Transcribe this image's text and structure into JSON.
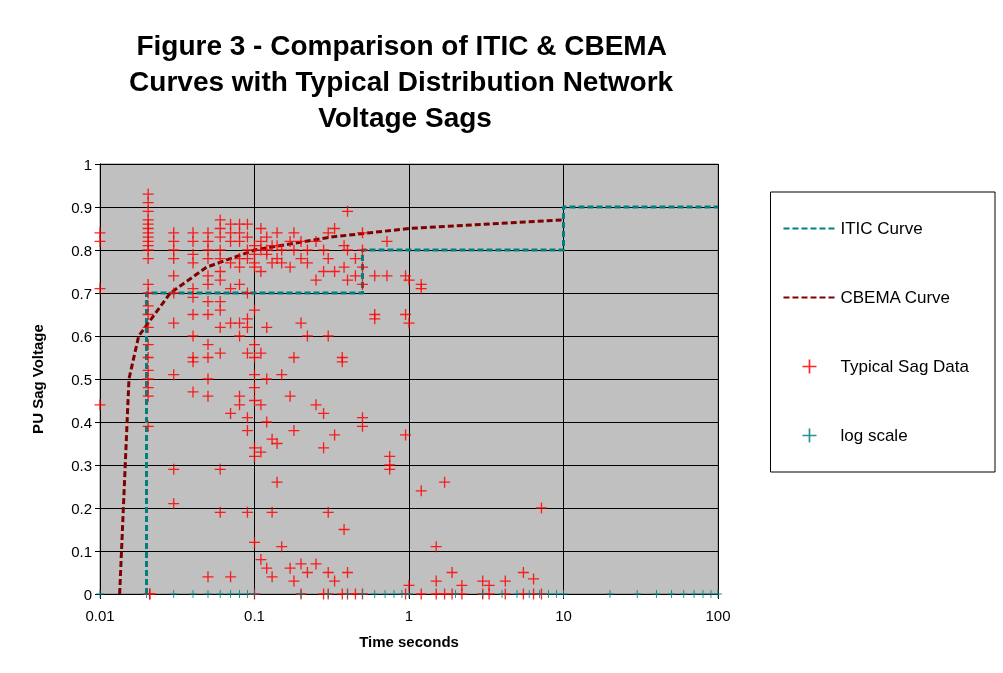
{
  "chart_data": {
    "type": "scatter",
    "title": "Figure 3 - Comparison of ITIC & CBEMA Curves with Typical Distribution Network Voltage Sags",
    "xlabel": "Time seconds",
    "ylabel": "PU Sag Voltage",
    "log": "x",
    "xlim": [
      0.01,
      100
    ],
    "xticks": [
      0.01,
      0.1,
      1,
      10,
      100
    ],
    "ylim": [
      0,
      1
    ],
    "yticks": [
      0,
      0.1,
      0.2,
      0.3,
      0.4,
      0.5,
      0.6,
      0.7,
      0.8,
      0.9,
      1
    ],
    "grid": true,
    "legend": "right",
    "series": [
      {
        "name": "ITIC Curve",
        "type": "line",
        "color": "#008080",
        "line_style": "dashed",
        "marker": "none",
        "x": [
          0.02,
          0.02,
          0.5,
          0.5,
          10,
          10,
          100
        ],
        "values": [
          0,
          0.7,
          0.7,
          0.8,
          0.8,
          0.9,
          0.9
        ]
      },
      {
        "name": "CBEMA Curve",
        "type": "line",
        "color": "#800000",
        "line_style": "dashed",
        "marker": "none",
        "x": [
          0.0134,
          0.0154,
          0.0178,
          0.0285,
          0.049,
          0.1,
          0.31,
          1,
          10
        ],
        "values": [
          0,
          0.5,
          0.6,
          0.7,
          0.76,
          0.8,
          0.83,
          0.85,
          0.87
        ]
      },
      {
        "name": "Typical Sag Data",
        "color": "#ff0000",
        "marker": "cross",
        "x": [
          0.01,
          0.01,
          0.01,
          0.01,
          0.0205,
          0.0205,
          0.0205,
          0.0205,
          0.0205,
          0.0205,
          0.0205,
          0.0205,
          0.0205,
          0.0205,
          0.0205,
          0.0205,
          0.0205,
          0.0205,
          0.0205,
          0.0205,
          0.0205,
          0.0205,
          0.0205,
          0.0205,
          0.0205,
          0.0205,
          0.0205,
          0.0205,
          0.021,
          0.021,
          0.03,
          0.03,
          0.03,
          0.03,
          0.03,
          0.03,
          0.03,
          0.03,
          0.03,
          0.03,
          0.04,
          0.04,
          0.04,
          0.04,
          0.04,
          0.04,
          0.04,
          0.04,
          0.04,
          0.04,
          0.04,
          0.05,
          0.05,
          0.05,
          0.05,
          0.05,
          0.05,
          0.05,
          0.05,
          0.05,
          0.05,
          0.05,
          0.05,
          0.05,
          0.06,
          0.06,
          0.06,
          0.06,
          0.06,
          0.06,
          0.06,
          0.06,
          0.06,
          0.06,
          0.06,
          0.06,
          0.06,
          0.07,
          0.07,
          0.07,
          0.07,
          0.07,
          0.07,
          0.07,
          0.07,
          0.08,
          0.08,
          0.08,
          0.08,
          0.08,
          0.08,
          0.08,
          0.08,
          0.08,
          0.08,
          0.09,
          0.09,
          0.09,
          0.09,
          0.09,
          0.09,
          0.09,
          0.09,
          0.09,
          0.09,
          0.09,
          0.1,
          0.1,
          0.1,
          0.1,
          0.1,
          0.1,
          0.1,
          0.1,
          0.1,
          0.1,
          0.1,
          0.1,
          0.1,
          0.1,
          0.11,
          0.11,
          0.11,
          0.11,
          0.11,
          0.11,
          0.11,
          0.11,
          0.12,
          0.12,
          0.12,
          0.12,
          0.12,
          0.12,
          0.12,
          0.13,
          0.13,
          0.13,
          0.13,
          0.13,
          0.14,
          0.14,
          0.14,
          0.14,
          0.14,
          0.15,
          0.15,
          0.15,
          0.15,
          0.17,
          0.17,
          0.17,
          0.17,
          0.18,
          0.18,
          0.18,
          0.18,
          0.18,
          0.2,
          0.2,
          0.2,
          0.2,
          0.2,
          0.22,
          0.22,
          0.22,
          0.22,
          0.25,
          0.25,
          0.25,
          0.25,
          0.28,
          0.28,
          0.28,
          0.28,
          0.28,
          0.3,
          0.3,
          0.3,
          0.3,
          0.3,
          0.3,
          0.33,
          0.33,
          0.33,
          0.33,
          0.37,
          0.37,
          0.37,
          0.38,
          0.38,
          0.38,
          0.4,
          0.4,
          0.4,
          0.4,
          0.4,
          0.45,
          0.45,
          0.45,
          0.5,
          0.5,
          0.5,
          0.5,
          0.5,
          0.5,
          0.5,
          0.6,
          0.6,
          0.6,
          0.72,
          0.72,
          0.75,
          0.75,
          0.75,
          0.95,
          0.95,
          0.95,
          0.95,
          1,
          1,
          1,
          1.2,
          1.2,
          1.2,
          1.2,
          1.5,
          1.5,
          1.5,
          1.7,
          1.7,
          1.9,
          1.9,
          2.2,
          2.2,
          3,
          3,
          3.3,
          3.3,
          4.2,
          4.2,
          5.5,
          5.5,
          6.4,
          6.4,
          7.2,
          7.2
        ],
        "values": [
          0.84,
          0.82,
          0.71,
          0.44,
          0.93,
          0.91,
          0.89,
          0.87,
          0.86,
          0.85,
          0.84,
          0.83,
          0.82,
          0.81,
          0.8,
          0.78,
          0.72,
          0.7,
          0.67,
          0.65,
          0.62,
          0.58,
          0.55,
          0.52,
          0.5,
          0.48,
          0.46,
          0.39,
          0,
          0,
          0.84,
          0.82,
          0.8,
          0.78,
          0.74,
          0.7,
          0.63,
          0.51,
          0.29,
          0.21,
          0.84,
          0.82,
          0.79,
          0.77,
          0.71,
          0.69,
          0.65,
          0.6,
          0.55,
          0.54,
          0.47,
          0.84,
          0.82,
          0.8,
          0.78,
          0.74,
          0.72,
          0.68,
          0.65,
          0.58,
          0.55,
          0.5,
          0.46,
          0.04,
          0.87,
          0.85,
          0.83,
          0.8,
          0.78,
          0.75,
          0.73,
          0.68,
          0.66,
          0.62,
          0.56,
          0.29,
          0.19,
          0.86,
          0.84,
          0.82,
          0.77,
          0.71,
          0.63,
          0.42,
          0.04,
          0.86,
          0.84,
          0.82,
          0.78,
          0.76,
          0.72,
          0.63,
          0.6,
          0.46,
          0.44,
          0.86,
          0.83,
          0.8,
          0.78,
          0.7,
          0.64,
          0.62,
          0.56,
          0.41,
          0.38,
          0.19,
          0.81,
          0.79,
          0.77,
          0.76,
          0.66,
          0.58,
          0.55,
          0.51,
          0.48,
          0.45,
          0.34,
          0.32,
          0.12,
          0,
          0.85,
          0.82,
          0.8,
          0.75,
          0.56,
          0.44,
          0.33,
          0.08,
          0.83,
          0.8,
          0.79,
          0.62,
          0.5,
          0.4,
          0.06,
          0.81,
          0.77,
          0.36,
          0.19,
          0.04,
          0.84,
          0.81,
          0.78,
          0.35,
          0.26,
          0.8,
          0.77,
          0.51,
          0.11,
          0.82,
          0.76,
          0.46,
          0.06,
          0.84,
          0.8,
          0.55,
          0.38,
          0.03,
          0.82,
          0.78,
          0.63,
          0.07,
          0,
          0.8,
          0.77,
          0.6,
          0.05,
          0.82,
          0.73,
          0.44,
          0.07,
          0.8,
          0.75,
          0.42,
          0.34,
          0,
          0.84,
          0.78,
          0.6,
          0.19,
          0.05,
          0,
          0.85,
          0.75,
          0.37,
          0.03,
          0.55,
          0.54,
          0,
          0.81,
          0.76,
          0.15,
          0.89,
          0.8,
          0.73,
          0.05,
          0,
          0.78,
          0.74,
          0,
          0.84,
          0.8,
          0.76,
          0.72,
          0.41,
          0.39,
          0,
          0.74,
          0.65,
          0.64,
          0.82,
          0.74,
          0.32,
          0.3,
          0.29,
          0.74,
          0.65,
          0.37,
          0,
          0.73,
          0.63,
          0.02,
          0.72,
          0.71,
          0.24,
          0,
          0.11,
          0.03,
          0,
          0.26,
          0,
          0.05,
          0,
          0.02,
          0,
          0.03,
          0,
          0.02,
          0,
          0.03,
          0,
          0.05,
          0,
          0.035,
          0,
          0.2,
          0
        ]
      },
      {
        "name": "log scale",
        "color": "#008080",
        "marker": "cross",
        "x": [
          0.01,
          0.02,
          0.03,
          0.04,
          0.05,
          0.06,
          0.07,
          0.08,
          0.09,
          0.1,
          0.2,
          0.3,
          0.4,
          0.5,
          0.6,
          0.7,
          0.8,
          0.9,
          1,
          2,
          3,
          4,
          5,
          6,
          7,
          8,
          9,
          10,
          20,
          30,
          40,
          50,
          60,
          70,
          80,
          90,
          100
        ],
        "values": [
          0,
          0,
          0,
          0,
          0,
          0,
          0,
          0,
          0,
          0,
          0,
          0,
          0,
          0,
          0,
          0,
          0,
          0,
          0,
          0,
          0,
          0,
          0,
          0,
          0,
          0,
          0,
          0,
          0,
          0,
          0,
          0,
          0,
          0,
          0,
          0,
          0
        ]
      }
    ]
  }
}
